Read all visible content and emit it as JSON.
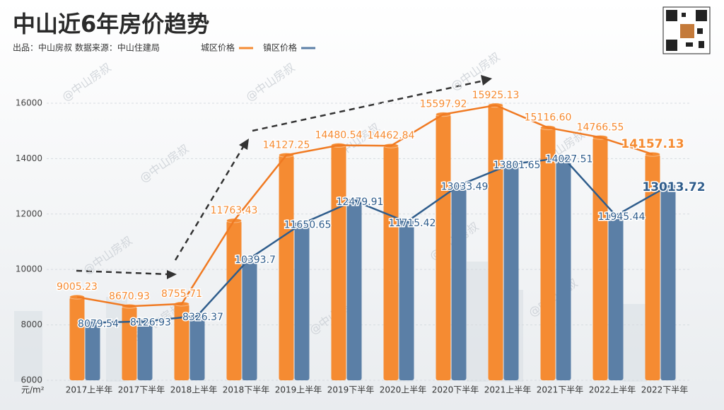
{
  "chart_data": {
    "type": "bar-line",
    "title": "中山近6年房价趋势",
    "subtitle": "出品：中山房叔  数据来源：中山住建局",
    "y_unit": "元/m²",
    "watermark": "@中山房叔",
    "categories": [
      "2017上半年",
      "2017下半年",
      "2018上半年",
      "2018下半年",
      "2019上半年",
      "2019下半年",
      "2020上半年",
      "2020下半年",
      "2021上半年",
      "2021下半年",
      "2022上半年",
      "2022下半年"
    ],
    "series": [
      {
        "name": "城区价格",
        "color": "#f58b32",
        "line_color": "#f07a22",
        "values": [
          9005.23,
          8670.93,
          8755.71,
          11763.43,
          14127.25,
          14480.54,
          14462.84,
          15597.92,
          15925.13,
          15116.6,
          14766.55,
          14157.13
        ],
        "value_labels": [
          "9005.23",
          "8670.93",
          "8755.71",
          "11763.43",
          "14127.25",
          "14480.54",
          "14462.84",
          "15597.92",
          "15925.13",
          "15116.60",
          "14766.55",
          "14157.13"
        ]
      },
      {
        "name": "镇区价格",
        "color": "#5b7fa6",
        "line_color": "#2f5d8c",
        "values": [
          8079.54,
          8126.93,
          8326.37,
          10393.7,
          11650.65,
          12479.91,
          11715.42,
          13033.49,
          13801.65,
          14027.51,
          11945.44,
          13013.72
        ],
        "value_labels": [
          "8079.54",
          "8126.93",
          "8326.37",
          "10393.7",
          "11650.65",
          "12479.91",
          "11715.42",
          "13033.49",
          "13801.65",
          "14027.51",
          "11945.44",
          "13013.72"
        ]
      }
    ],
    "ylim": [
      6000,
      17300
    ],
    "yticks": [
      6000,
      8000,
      10000,
      12000,
      14000,
      16000
    ],
    "grid": true
  }
}
